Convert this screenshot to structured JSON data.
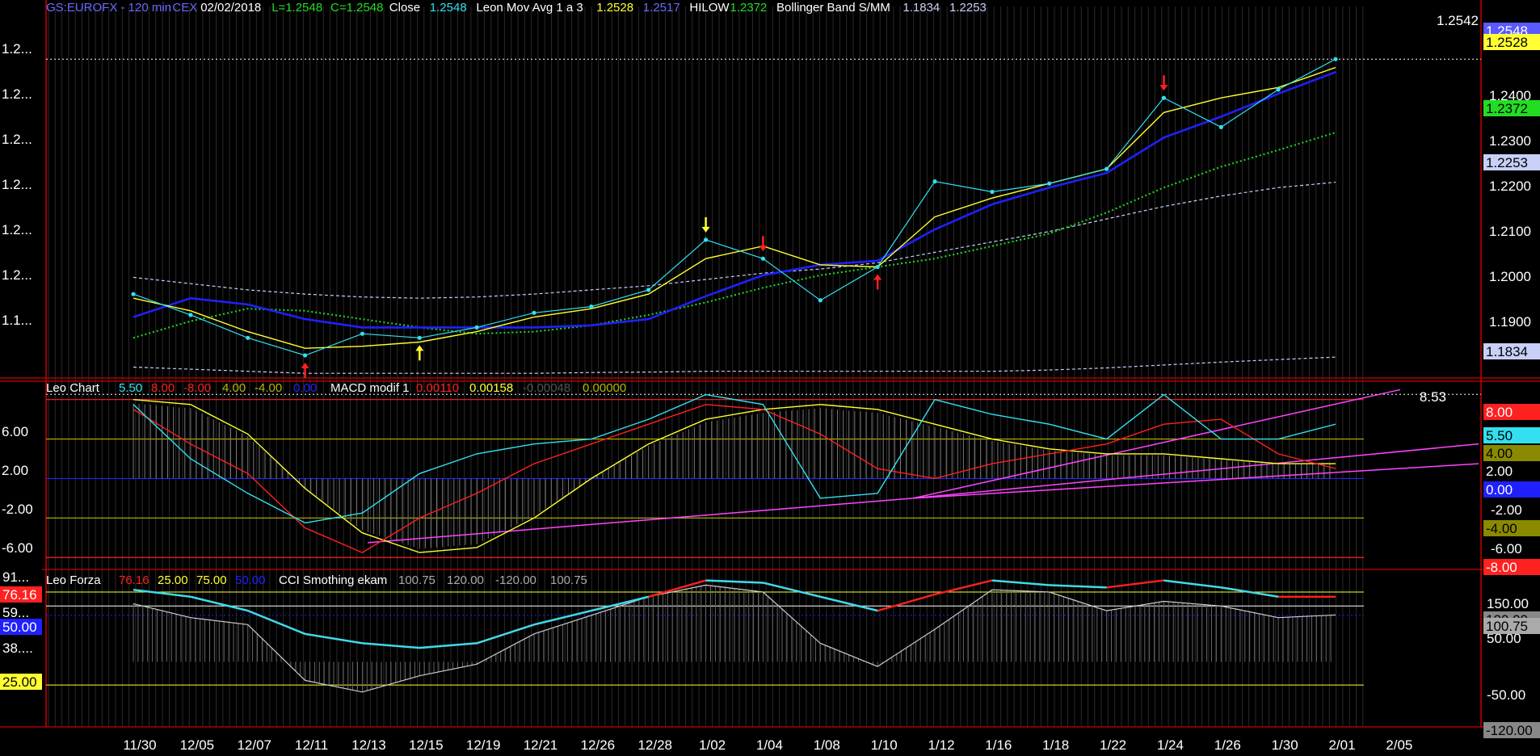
{
  "colors": {
    "background": "#000000",
    "frame": "#cc0000",
    "text": "#ffffff",
    "cyan": "#33e0f0",
    "yellow": "#ffff33",
    "blue": "#2020ff",
    "green": "#22dd22",
    "red": "#ff2020",
    "magenta": "#ff44ff",
    "olive": "#b8b800",
    "gray": "#aaaaaa",
    "band": "#c8d0f8"
  },
  "header": {
    "symbol": "GS:EUROFX - 120 min",
    "exchange": "CEX",
    "date": "02/02/2018",
    "low": "L=1.2548",
    "close": "C=1.2548",
    "close_label": "Close",
    "close_value": "1.2548",
    "ma_label": "Leon Mov Avg 1 a 3",
    "ma_value1": "1.2528",
    "ma_value2": "1.2517",
    "hilow_label": "HILOW",
    "hilow_value": "1.2372",
    "bb_label": "Bollinger Band S/MM",
    "bb_value1": "1.1834",
    "bb_value2": "1.2253"
  },
  "price_panel": {
    "last_price_marker": "1.2542",
    "left_ticks": [
      "1.2...",
      "1.2...",
      "1.2...",
      "1.2...",
      "1.2...",
      "1.2...",
      "1.1..."
    ],
    "right_ticks": [
      "1.2400",
      "1.2300",
      "1.2200",
      "1.2100",
      "1.2000",
      "1.1900"
    ],
    "tags": [
      {
        "text": "1.2548",
        "value": 1.2548,
        "bg": "#5a5aff",
        "fg": "#ffffff"
      },
      {
        "text": "1.2528",
        "value": 1.2528,
        "bg": "#ffff33",
        "fg": "#000000"
      },
      {
        "text": "1.2372",
        "value": 1.2372,
        "bg": "#22dd22",
        "fg": "#000000"
      },
      {
        "text": "1.2253",
        "value": 1.2253,
        "bg": "#c8d0f8",
        "fg": "#000000"
      },
      {
        "text": "1.1834",
        "value": 1.1834,
        "bg": "#c8d0f8",
        "fg": "#000000"
      }
    ]
  },
  "macd_panel": {
    "legend_name": "Leo Chart",
    "legend_values": [
      {
        "text": "5.50",
        "color": "#33e0f0"
      },
      {
        "text": "8.00",
        "color": "#ff2020"
      },
      {
        "text": "-8.00",
        "color": "#ff2020"
      },
      {
        "text": "4.00",
        "color": "#b8b800"
      },
      {
        "text": "-4.00",
        "color": "#b8b800"
      },
      {
        "text": "0.00",
        "color": "#2020ff"
      }
    ],
    "legend2_name": "MACD modif 1",
    "legend2_values": [
      {
        "text": "0.00110",
        "color": "#ff2020"
      },
      {
        "text": "0.00158",
        "color": "#ffff33"
      },
      {
        "text": "-0.00048",
        "color": "#555555"
      },
      {
        "text": "0.00000",
        "color": "#b8b800"
      }
    ],
    "top_marker": "8.53",
    "left_ticks": [
      "6.00",
      "2.00",
      "-2.00",
      "-6.00"
    ],
    "right_ticks": [
      "-2.00",
      "-6.00"
    ],
    "tags": [
      {
        "text": "8.00",
        "value": 8,
        "bg": "#ff2020",
        "fg": "#ffffff"
      },
      {
        "text": "5.50",
        "value": 5.5,
        "bg": "#33e0f0",
        "fg": "#000000"
      },
      {
        "text": "4.00",
        "value": 4,
        "bg": "#8a8a00",
        "fg": "#000000"
      },
      {
        "text": "2.00",
        "value": 2,
        "bg": "#000000",
        "fg": "#ffffff"
      },
      {
        "text": "0.00",
        "value": 0,
        "bg": "#2020ff",
        "fg": "#ffffff"
      },
      {
        "text": "-4.00",
        "value": -4,
        "bg": "#8a8a00",
        "fg": "#000000"
      },
      {
        "text": "-8.00",
        "value": -8,
        "bg": "#ff2020",
        "fg": "#ffffff"
      }
    ]
  },
  "cci_panel": {
    "legend_name": "Leo Forza",
    "legend_values": [
      {
        "text": "76.16",
        "color": "#ff2020"
      },
      {
        "text": "25.00",
        "color": "#ffff33"
      },
      {
        "text": "75.00",
        "color": "#ffff33"
      },
      {
        "text": "50.00",
        "color": "#2020ff"
      }
    ],
    "legend2_name": "CCI Smothing ekam",
    "legend2_values": [
      {
        "text": "100.75",
        "color": "#aaaaaa"
      },
      {
        "text": "120.00",
        "color": "#aaaaaa"
      },
      {
        "text": "-120.00",
        "color": "#aaaaaa"
      },
      {
        "text": "100.75",
        "color": "#aaaaaa"
      }
    ],
    "left_labels": [
      {
        "text": "91...",
        "value": 91,
        "bg": "#000000",
        "fg": "#ffffff"
      },
      {
        "text": "76.16",
        "value": 76.16,
        "bg": "#ff2020",
        "fg": "#ffffff"
      },
      {
        "text": "59...",
        "value": 59,
        "bg": "#000000",
        "fg": "#ffffff"
      },
      {
        "text": "50.00",
        "value": 50,
        "bg": "#2020ff",
        "fg": "#ffffff"
      },
      {
        "text": "38....",
        "value": 38,
        "bg": "#000000",
        "fg": "#ffffff"
      },
      {
        "text": "25.00",
        "value": 25,
        "bg": "#ffff33",
        "fg": "#000000"
      }
    ],
    "right_ticks": [
      "150.00",
      "50.00",
      "-50.00"
    ],
    "tags": [
      {
        "text": "120.00",
        "value": 120,
        "bg": "#888888",
        "fg": "#000000"
      },
      {
        "text": "100.75",
        "value": 100.75,
        "bg": "#aaaaaa",
        "fg": "#000000"
      },
      {
        "text": "-120.00",
        "value": -120,
        "bg": "#888888",
        "fg": "#000000"
      }
    ]
  },
  "x_axis": {
    "labels": [
      "11/30",
      "12/05",
      "12/07",
      "12/11",
      "12/13",
      "12/15",
      "12/19",
      "12/21",
      "12/26",
      "12/28",
      "1/02",
      "1/04",
      "1/08",
      "1/10",
      "1/12",
      "1/16",
      "1/18",
      "1/22",
      "1/24",
      "1/26",
      "1/30",
      "2/01",
      "2/05"
    ]
  },
  "chart_data": [
    {
      "type": "line",
      "x": [
        "11/30",
        "12/05",
        "12/07",
        "12/11",
        "12/13",
        "12/15",
        "12/19",
        "12/21",
        "12/26",
        "12/28",
        "1/02",
        "1/04",
        "1/08",
        "1/10",
        "1/12",
        "1/16",
        "1/18",
        "1/22",
        "1/24",
        "1/26",
        "1/30",
        "2/01"
      ],
      "ylim": [
        1.178,
        1.262
      ],
      "series": [
        {
          "name": "Close",
          "values": [
            1.1985,
            1.1935,
            1.188,
            1.1838,
            1.189,
            1.188,
            1.1905,
            1.194,
            1.1955,
            1.1995,
            1.2115,
            1.207,
            1.197,
            1.205,
            1.2255,
            1.223,
            1.225,
            1.2285,
            1.2455,
            1.2385,
            1.2475,
            1.2548
          ]
        },
        {
          "name": "Leon Mov Avg 1 a 3",
          "values": [
            1.1975,
            1.1945,
            1.1895,
            1.1855,
            1.186,
            1.187,
            1.1895,
            1.193,
            1.195,
            1.1985,
            1.207,
            1.21,
            1.2055,
            1.205,
            1.217,
            1.2215,
            1.225,
            1.2285,
            1.242,
            1.2455,
            1.248,
            1.2528
          ]
        },
        {
          "name": "Leon Mov Avg 1 a 3 (2)",
          "values": [
            1.193,
            1.1975,
            1.196,
            1.1925,
            1.1905,
            1.1905,
            1.1905,
            1.1905,
            1.191,
            1.1925,
            1.198,
            1.203,
            1.2055,
            1.2065,
            1.214,
            1.22,
            1.224,
            1.2275,
            1.236,
            1.241,
            1.2465,
            1.2517
          ]
        },
        {
          "name": "HILOW",
          "values": [
            1.188,
            1.192,
            1.195,
            1.1945,
            1.1925,
            1.1905,
            1.189,
            1.1895,
            1.191,
            1.1935,
            1.1965,
            1.2,
            1.203,
            1.205,
            1.207,
            1.21,
            1.213,
            1.218,
            1.224,
            1.229,
            1.233,
            1.2372
          ]
        },
        {
          "name": "Bollinger Band S/MM",
          "values": [
            1.2025,
            1.201,
            1.1995,
            1.1985,
            1.1978,
            1.1975,
            1.1978,
            1.1985,
            1.1995,
            1.2005,
            1.202,
            1.2035,
            1.2045,
            1.206,
            1.2085,
            1.211,
            1.2135,
            1.2165,
            1.2195,
            1.222,
            1.224,
            1.2253
          ]
        },
        {
          "name": "Bollinger Band S/MM (lower)",
          "values": [
            1.181,
            1.1805,
            1.18,
            1.1795,
            1.1795,
            1.1795,
            1.1795,
            1.1795,
            1.1797,
            1.1798,
            1.18,
            1.18,
            1.18,
            1.18,
            1.18,
            1.18,
            1.1803,
            1.1808,
            1.1815,
            1.1822,
            1.1828,
            1.1834
          ]
        }
      ]
    },
    {
      "type": "line",
      "x": [
        "11/30",
        "12/05",
        "12/07",
        "12/11",
        "12/13",
        "12/15",
        "12/19",
        "12/21",
        "12/26",
        "12/28",
        "1/02",
        "1/04",
        "1/08",
        "1/10",
        "1/12",
        "1/16",
        "1/18",
        "1/22",
        "1/24",
        "1/26",
        "1/30",
        "2/01"
      ],
      "ylim": [
        -8.8,
        9.2
      ],
      "series": [
        {
          "name": "Leo Chart",
          "values": [
            7.5,
            2.0,
            -1.5,
            -4.5,
            -3.5,
            0.5,
            2.5,
            3.5,
            4.0,
            6.0,
            8.5,
            7.5,
            -2.0,
            -1.5,
            8.0,
            6.5,
            5.5,
            4.0,
            8.5,
            4.0,
            4.0,
            5.5
          ]
        },
        {
          "name": "MACD modif 1",
          "values": [
            7.0,
            3.5,
            0.5,
            -5.0,
            -7.5,
            -4.0,
            -1.5,
            1.5,
            3.5,
            5.5,
            7.5,
            7.0,
            4.5,
            1.0,
            0.0,
            1.5,
            2.5,
            3.5,
            5.5,
            6.0,
            2.5,
            1.0
          ]
        },
        {
          "name": "MACD modif 1 (signal)",
          "values": [
            8.0,
            7.5,
            4.5,
            -1.0,
            -5.5,
            -7.5,
            -7.0,
            -4.0,
            0.0,
            3.5,
            6.0,
            7.0,
            7.5,
            7.0,
            5.5,
            4.0,
            3.0,
            2.5,
            2.5,
            2.0,
            1.5,
            1.5
          ]
        }
      ]
    },
    {
      "type": "line",
      "x": [
        "11/30",
        "12/05",
        "12/07",
        "12/11",
        "12/13",
        "12/15",
        "12/19",
        "12/21",
        "12/26",
        "12/28",
        "1/02",
        "1/04",
        "1/08",
        "1/10",
        "1/12",
        "1/16",
        "1/18",
        "1/22",
        "1/24",
        "1/26",
        "1/30",
        "2/01"
      ],
      "ylim": [
        -140,
        190
      ],
      "series": [
        {
          "name": "Leo Forza",
          "values": [
            155,
            140,
            110,
            60,
            40,
            30,
            40,
            80,
            110,
            140,
            175,
            170,
            140,
            110,
            145,
            175,
            165,
            160,
            175,
            160,
            140,
            140
          ]
        },
        {
          "name": "CCI Smothing ekam",
          "values": [
            125,
            95,
            80,
            -40,
            -65,
            -30,
            -5,
            60,
            100,
            140,
            165,
            150,
            40,
            -10,
            70,
            155,
            150,
            110,
            130,
            120,
            95,
            100.75
          ]
        }
      ]
    }
  ]
}
